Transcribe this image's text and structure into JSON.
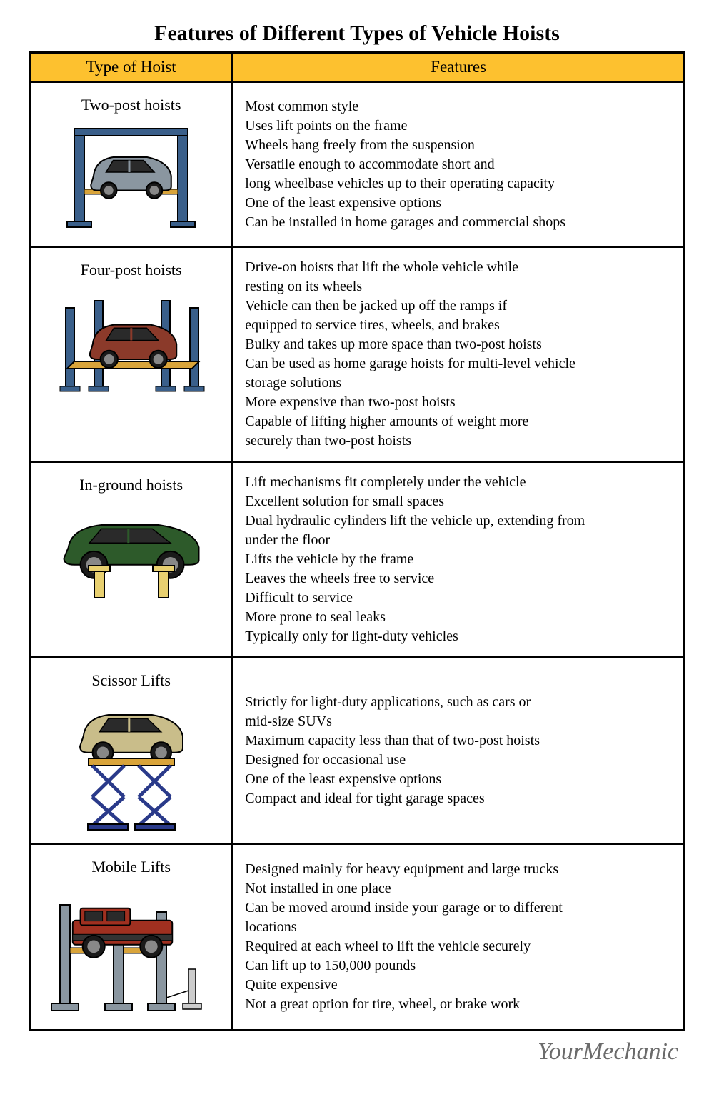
{
  "title": "Features of Different Types of Vehicle Hoists",
  "columns": {
    "type": "Type of Hoist",
    "features": "Features"
  },
  "background_color": "#ffffff",
  "header_bg": "#fdc12f",
  "border_color": "#000000",
  "title_fontsize": 30,
  "header_fontsize": 23,
  "body_fontsize": 20,
  "type_label_fontsize": 22,
  "logo_text": "YourMechanic",
  "logo_color": "#6b6b6b",
  "rows": [
    {
      "type": "Two-post hoists",
      "illustration": "two-post",
      "car_color": "#8a96a0",
      "post_color": "#3a5f8a",
      "features": [
        "Most common style",
        "Uses lift points on the frame",
        "Wheels hang freely from the suspension",
        "Versatile enough to accommodate short and",
        "long wheelbase vehicles up to their operating capacity",
        "One of the least expensive options",
        "Can be installed in home garages and commercial shops"
      ]
    },
    {
      "type": "Four-post hoists",
      "illustration": "four-post",
      "car_color": "#8b3a2a",
      "post_color": "#3a5f8a",
      "ramp_color": "#d9a43a",
      "features": [
        "Drive-on hoists that lift the whole vehicle while",
        "resting on its wheels",
        "Vehicle can then be jacked up off the ramps if",
        "equipped to service tires, wheels, and brakes",
        "Bulky and takes up more space than two-post hoists",
        "Can be used as home garage hoists for multi-level vehicle",
        "storage solutions",
        "More expensive than two-post hoists",
        "Capable of lifting higher amounts of weight more",
        "securely than two-post hoists"
      ]
    },
    {
      "type": "In-ground hoists",
      "illustration": "in-ground",
      "car_color": "#2d5a2a",
      "post_color": "#e8d070",
      "features": [
        "Lift mechanisms fit completely under the vehicle",
        "Excellent solution for small spaces",
        "Dual hydraulic cylinders lift the vehicle up, extending from",
        "under the floor",
        "Lifts the vehicle by the frame",
        "Leaves the wheels free to service",
        "Difficult to service",
        "More prone to seal leaks",
        "Typically only for light-duty vehicles"
      ]
    },
    {
      "type": "Scissor Lifts",
      "illustration": "scissor",
      "car_color": "#c9bd8a",
      "post_color": "#2a3a8a",
      "ramp_color": "#d9a43a",
      "features": [
        "Strictly for light-duty applications, such as cars or",
        "mid-size SUVs",
        "Maximum capacity less than that of two-post hoists",
        "Designed for occasional use",
        "One of the least expensive options",
        "Compact and ideal for tight garage spaces"
      ]
    },
    {
      "type": "Mobile Lifts",
      "illustration": "mobile",
      "car_color": "#a03020",
      "post_color": "#8a96a0",
      "features": [
        "Designed mainly for heavy equipment and large trucks",
        "Not installed in one place",
        "Can be moved around inside your garage or to different",
        "locations",
        "Required at each wheel to lift the vehicle securely",
        "Can lift up to 150,000 pounds",
        "Quite expensive",
        "Not a great option for tire, wheel, or brake work"
      ]
    }
  ]
}
